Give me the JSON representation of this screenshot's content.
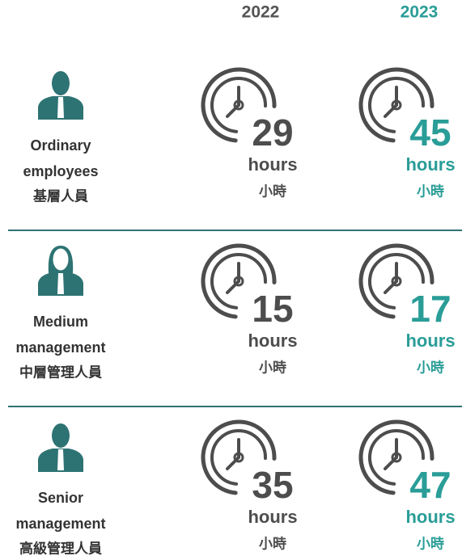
{
  "columns": [
    "2022",
    "2023"
  ],
  "units": {
    "en": "hours",
    "zh": "小時"
  },
  "rows": [
    {
      "label_en": [
        "Ordinary",
        "employees"
      ],
      "label_zh": "基層人員",
      "values": [
        29,
        45
      ]
    },
    {
      "label_en": [
        "Medium",
        "management"
      ],
      "label_zh": "中層管理人員",
      "values": [
        15,
        17
      ]
    },
    {
      "label_en": [
        "Senior",
        "management"
      ],
      "label_zh": "高級管理人員",
      "values": [
        35,
        47
      ]
    }
  ]
}
